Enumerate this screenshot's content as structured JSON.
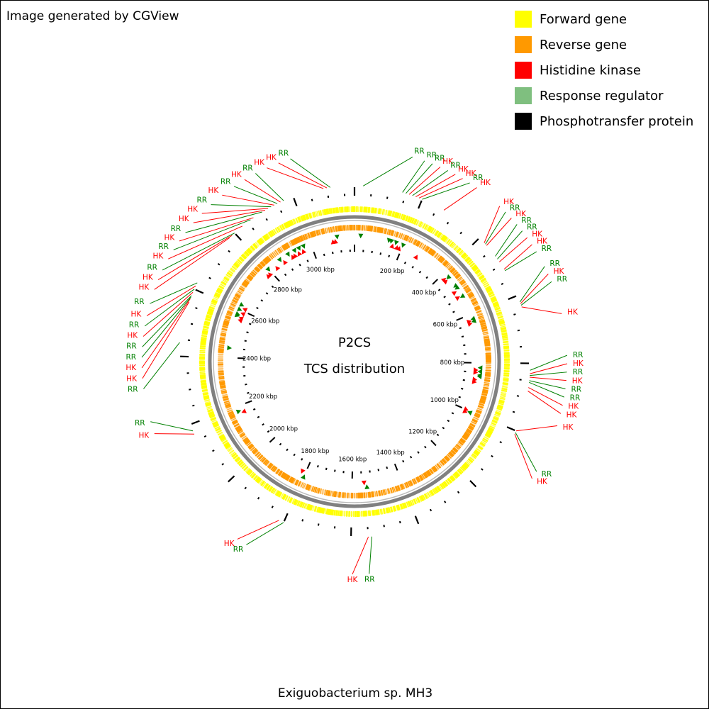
{
  "credit": "Image generated by CGView",
  "organism": "Exiguobacterium sp. MH3",
  "center": {
    "line1": "P2CS",
    "line2": "TCS distribution"
  },
  "colors": {
    "forward": "#FFFF00",
    "reverse": "#FF9900",
    "hk": "#FF0000",
    "rr": "#008000",
    "rr_legend": "#7FBF7F",
    "phospho": "#000000",
    "backbone": "#808080"
  },
  "legend": [
    {
      "label": "Forward gene",
      "color": "#FFFF00"
    },
    {
      "label": "Reverse gene",
      "color": "#FF9900"
    },
    {
      "label": "Histidine kinase",
      "color": "#FF0000"
    },
    {
      "label": "Response regulator",
      "color": "#7FBF7F"
    },
    {
      "label": "Phosphotransfer protein",
      "color": "#000000"
    }
  ],
  "genome_kbp": 3180,
  "kbp_labels": [
    {
      "text": "200 kbp",
      "kbp": 200
    },
    {
      "text": "400 kbp",
      "kbp": 400
    },
    {
      "text": "600 kbp",
      "kbp": 600
    },
    {
      "text": "800 kbp",
      "kbp": 800
    },
    {
      "text": "1000 kbp",
      "kbp": 1000
    },
    {
      "text": "1200 kbp",
      "kbp": 1200
    },
    {
      "text": "1400 kbp",
      "kbp": 1400
    },
    {
      "text": "1600 kbp",
      "kbp": 1600
    },
    {
      "text": "1800 kbp",
      "kbp": 1800
    },
    {
      "text": "2000 kbp",
      "kbp": 2000
    },
    {
      "text": "2200 kbp",
      "kbp": 2200
    },
    {
      "text": "2400 kbp",
      "kbp": 2400
    },
    {
      "text": "2600 kbp",
      "kbp": 2600
    },
    {
      "text": "2800 kbp",
      "kbp": 2800
    },
    {
      "text": "3000 kbp",
      "kbp": 3000
    }
  ],
  "features": [
    {
      "label": "RR",
      "type": "rr",
      "kbp": 25,
      "label_kbp": 140
    },
    {
      "label": "RR",
      "type": "rr",
      "kbp": 140,
      "label_kbp": 170
    },
    {
      "label": "RR",
      "type": "rr",
      "kbp": 150,
      "label_kbp": 190
    },
    {
      "label": "HK",
      "type": "hk",
      "kbp": 160,
      "label_kbp": 210
    },
    {
      "label": "RR",
      "type": "rr",
      "kbp": 170,
      "label_kbp": 230
    },
    {
      "label": "HK",
      "type": "hk",
      "kbp": 180,
      "label_kbp": 250
    },
    {
      "label": "HK",
      "type": "hk",
      "kbp": 190,
      "label_kbp": 270
    },
    {
      "label": "RR",
      "type": "rr",
      "kbp": 200,
      "label_kbp": 290
    },
    {
      "label": "HK",
      "type": "hk",
      "kbp": 270,
      "label_kbp": 310
    },
    {
      "label": "HK",
      "type": "hk",
      "kbp": 420,
      "label_kbp": 380
    },
    {
      "label": "RR",
      "type": "rr",
      "kbp": 425,
      "label_kbp": 400
    },
    {
      "label": "HK",
      "type": "hk",
      "kbp": 430,
      "label_kbp": 420
    },
    {
      "label": "RR",
      "type": "rr",
      "kbp": 470,
      "label_kbp": 440
    },
    {
      "label": "RR",
      "type": "rr",
      "kbp": 480,
      "label_kbp": 460
    },
    {
      "label": "HK",
      "type": "hk",
      "kbp": 490,
      "label_kbp": 480
    },
    {
      "label": "HK",
      "type": "hk",
      "kbp": 515,
      "label_kbp": 500
    },
    {
      "label": "RR",
      "type": "rr",
      "kbp": 520,
      "label_kbp": 520
    },
    {
      "label": "RR",
      "type": "rr",
      "kbp": 620,
      "label_kbp": 560
    },
    {
      "label": "HK",
      "type": "hk",
      "kbp": 625,
      "label_kbp": 580
    },
    {
      "label": "RR",
      "type": "rr",
      "kbp": 630,
      "label_kbp": 600
    },
    {
      "label": "HK",
      "type": "hk",
      "kbp": 635,
      "label_kbp": 680
    },
    {
      "label": "RR",
      "type": "rr",
      "kbp": 820,
      "label_kbp": 780
    },
    {
      "label": "HK",
      "type": "hk",
      "kbp": 830,
      "label_kbp": 800
    },
    {
      "label": "RR",
      "type": "rr",
      "kbp": 835,
      "label_kbp": 820
    },
    {
      "label": "HK",
      "type": "hk",
      "kbp": 840,
      "label_kbp": 840
    },
    {
      "label": "RR",
      "type": "rr",
      "kbp": 850,
      "label_kbp": 860
    },
    {
      "label": "RR",
      "type": "rr",
      "kbp": 855,
      "label_kbp": 880
    },
    {
      "label": "HK",
      "type": "hk",
      "kbp": 870,
      "label_kbp": 900
    },
    {
      "label": "HK",
      "type": "hk",
      "kbp": 880,
      "label_kbp": 920
    },
    {
      "label": "HK",
      "type": "hk",
      "kbp": 1000,
      "label_kbp": 950
    },
    {
      "label": "RR",
      "type": "rr",
      "kbp": 1005,
      "label_kbp": 1070
    },
    {
      "label": "HK",
      "type": "hk",
      "kbp": 1010,
      "label_kbp": 1090
    },
    {
      "label": "RR",
      "type": "rr",
      "kbp": 1540,
      "label_kbp": 1555
    },
    {
      "label": "HK",
      "type": "hk",
      "kbp": 1550,
      "label_kbp": 1595
    },
    {
      "label": "RR",
      "type": "rr",
      "kbp": 1800,
      "label_kbp": 1860
    },
    {
      "label": "HK",
      "type": "hk",
      "kbp": 1815,
      "label_kbp": 1885
    },
    {
      "label": "HK",
      "type": "hk",
      "kbp": 2170,
      "label_kbp": 2210
    },
    {
      "label": "RR",
      "type": "rr",
      "kbp": 2180,
      "label_kbp": 2240
    },
    {
      "label": "RR",
      "type": "rr",
      "kbp": 2440,
      "label_kbp": 2320
    },
    {
      "label": "HK",
      "type": "hk",
      "kbp": 2560,
      "label_kbp": 2345
    },
    {
      "label": "HK",
      "type": "hk",
      "kbp": 2570,
      "label_kbp": 2370
    },
    {
      "label": "RR",
      "type": "rr",
      "kbp": 2575,
      "label_kbp": 2395
    },
    {
      "label": "RR",
      "type": "rr",
      "kbp": 2580,
      "label_kbp": 2420
    },
    {
      "label": "HK",
      "type": "hk",
      "kbp": 2590,
      "label_kbp": 2445
    },
    {
      "label": "RR",
      "type": "rr",
      "kbp": 2600,
      "label_kbp": 2470
    },
    {
      "label": "HK",
      "type": "hk",
      "kbp": 2610,
      "label_kbp": 2495
    },
    {
      "label": "RR",
      "type": "rr",
      "kbp": 2620,
      "label_kbp": 2525
    },
    {
      "label": "HK",
      "type": "hk",
      "kbp": 2780,
      "label_kbp": 2560
    },
    {
      "label": "HK",
      "type": "hk",
      "kbp": 2790,
      "label_kbp": 2585
    },
    {
      "label": "RR",
      "type": "rr",
      "kbp": 2800,
      "label_kbp": 2610
    },
    {
      "label": "HK",
      "type": "hk",
      "kbp": 2830,
      "label_kbp": 2640
    },
    {
      "label": "RR",
      "type": "rr",
      "kbp": 2860,
      "label_kbp": 2665
    },
    {
      "label": "HK",
      "type": "hk",
      "kbp": 2870,
      "label_kbp": 2690
    },
    {
      "label": "RR",
      "type": "rr",
      "kbp": 2900,
      "label_kbp": 2715
    },
    {
      "label": "HK",
      "type": "hk",
      "kbp": 2910,
      "label_kbp": 2745
    },
    {
      "label": "HK",
      "type": "hk",
      "kbp": 2920,
      "label_kbp": 2775
    },
    {
      "label": "RR",
      "type": "rr",
      "kbp": 2930,
      "label_kbp": 2805
    },
    {
      "label": "HK",
      "type": "hk",
      "kbp": 2940,
      "label_kbp": 2840
    },
    {
      "label": "RR",
      "type": "rr",
      "kbp": 2950,
      "label_kbp": 2875
    },
    {
      "label": "HK",
      "type": "hk",
      "kbp": 2960,
      "label_kbp": 2905
    },
    {
      "label": "RR",
      "type": "rr",
      "kbp": 2970,
      "label_kbp": 2935
    },
    {
      "label": "HK",
      "type": "hk",
      "kbp": 3090,
      "label_kbp": 2965
    },
    {
      "label": "HK",
      "type": "hk",
      "kbp": 3100,
      "label_kbp": 2995
    },
    {
      "label": "RR",
      "type": "rr",
      "kbp": 3110,
      "label_kbp": 3025
    }
  ]
}
